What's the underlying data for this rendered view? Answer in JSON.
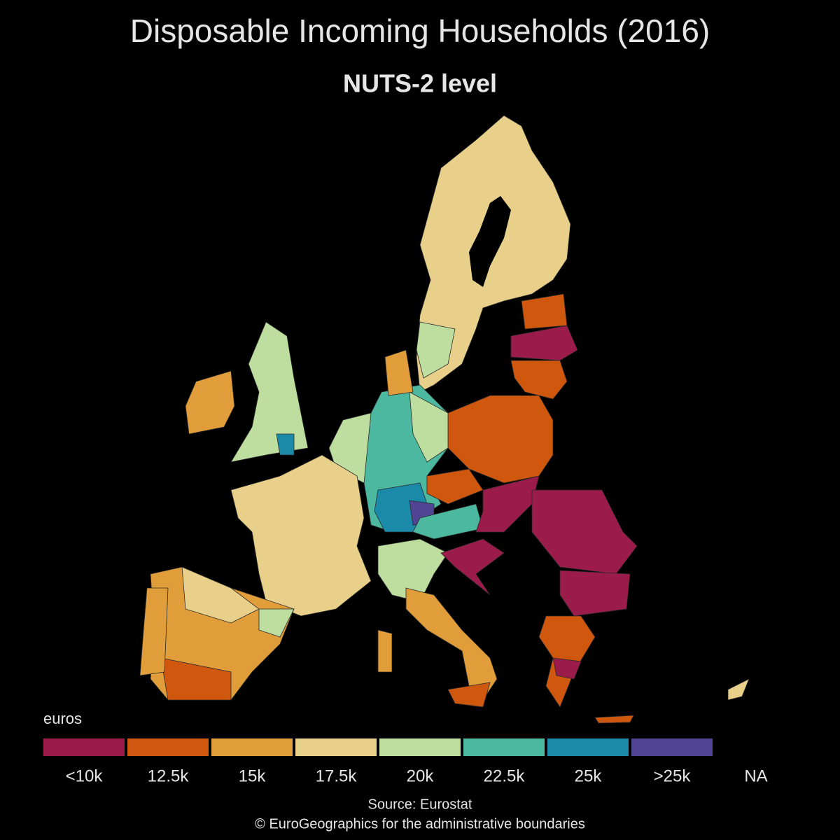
{
  "title": "Disposable Incoming Households (2016)",
  "subtitle": "NUTS-2 level",
  "legend": {
    "title": "euros",
    "items": [
      {
        "label": "<10k",
        "color": "#9b1b4a"
      },
      {
        "label": "12.5k",
        "color": "#cf570e"
      },
      {
        "label": "15k",
        "color": "#e09d3a"
      },
      {
        "label": "17.5k",
        "color": "#e8d08a"
      },
      {
        "label": "20k",
        "color": "#bedea0"
      },
      {
        "label": "22.5k",
        "color": "#4cb8a0"
      },
      {
        "label": "25k",
        "color": "#1b8aa8"
      },
      {
        "label": ">25k",
        "color": "#514593"
      }
    ],
    "na_label": "NA"
  },
  "source": [
    "Source: Eurostat",
    "© EuroGeographics for the administrative boundaries"
  ]
}
